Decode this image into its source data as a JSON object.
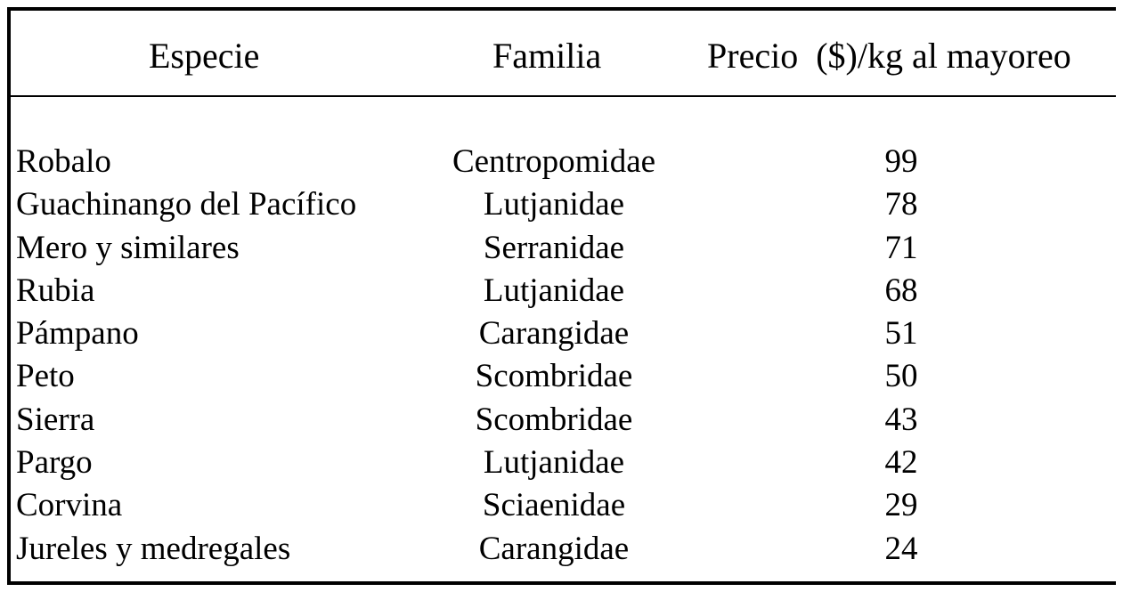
{
  "table": {
    "headers": {
      "especie": "Especie",
      "familia": "Familia",
      "precio": "Precio  ($)/kg al mayoreo"
    },
    "rows": [
      {
        "especie": "Robalo",
        "familia": "Centropomidae",
        "precio": "99"
      },
      {
        "especie": "Guachinango del Pacífico",
        "familia": "Lutjanidae",
        "precio": "78"
      },
      {
        "especie": "Mero y similares",
        "familia": "Serranidae",
        "precio": "71"
      },
      {
        "especie": "Rubia",
        "familia": "Lutjanidae",
        "precio": "68"
      },
      {
        "especie": "Pámpano",
        "familia": "Carangidae",
        "precio": "51"
      },
      {
        "especie": "Peto",
        "familia": "Scombridae",
        "precio": "50"
      },
      {
        "especie": "Sierra",
        "familia": "Scombridae",
        "precio": "43"
      },
      {
        "especie": "Pargo",
        "familia": "Lutjanidae",
        "precio": "42"
      },
      {
        "especie": "Corvina",
        "familia": "Sciaenidae",
        "precio": "29"
      },
      {
        "especie": "Jureles y medregales",
        "familia": "Carangidae",
        "precio": "24"
      }
    ]
  }
}
